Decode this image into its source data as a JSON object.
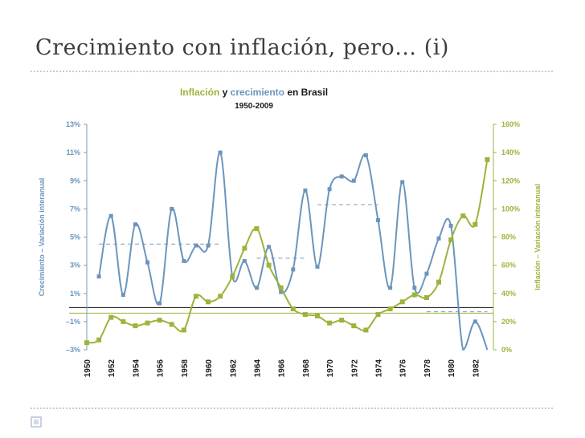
{
  "slide": {
    "title": "Crecimiento con inflación, pero… (i)"
  },
  "colors": {
    "growth": "#6b95bd",
    "inflation": "#9bb43c",
    "title_dark": "#1a1a1a",
    "title_text": "#3d3d3d"
  },
  "chart_data": {
    "type": "line",
    "title_parts": {
      "inflation": "Inflación",
      "conj": " y ",
      "growth": "crecimiento",
      "tail": " en Brasil"
    },
    "subtitle": "1950-2009",
    "ylabel": "Crecimiento – Variación interanual",
    "y2label": "Inflación – Variación interanual",
    "ylim": [
      -3,
      13
    ],
    "y2lim": [
      0,
      160
    ],
    "yticks": [
      13,
      11,
      9,
      7,
      5,
      3,
      1,
      -1,
      -3
    ],
    "ytick_labels": [
      "13%",
      "11%",
      "9%",
      "7%",
      "5%",
      "3%",
      "1%",
      "–1%",
      "–3%"
    ],
    "y2ticks": [
      160,
      140,
      120,
      100,
      80,
      60,
      40,
      20,
      0
    ],
    "y2tick_labels": [
      "160%",
      "140%",
      "120%",
      "100%",
      "80%",
      "60%",
      "40%",
      "20%",
      "0%"
    ],
    "x_ticks": [
      "1950",
      "1952",
      "1954",
      "1956",
      "1958",
      "1960",
      "1962",
      "1964",
      "1966",
      "1968",
      "1970",
      "1972",
      "1974",
      "1976",
      "1978",
      "1980",
      "1982"
    ],
    "series": [
      {
        "name": "crecimiento",
        "axis": "left",
        "x": [
          1951,
          1952,
          1953,
          1954,
          1955,
          1956,
          1957,
          1958,
          1959,
          1960,
          1961,
          1962,
          1963,
          1964,
          1965,
          1966,
          1967,
          1968,
          1969,
          1970,
          1971,
          1972,
          1973,
          1974,
          1975,
          1976,
          1977,
          1978,
          1979,
          1980,
          1981,
          1982,
          1983
        ],
        "values": [
          2.2,
          6.5,
          0.9,
          5.9,
          3.2,
          0.3,
          7.0,
          3.3,
          4.4,
          4.4,
          11.0,
          2.2,
          3.3,
          1.4,
          4.3,
          1.1,
          2.7,
          8.3,
          2.9,
          8.4,
          9.3,
          9.0,
          10.8,
          6.2,
          1.4,
          8.9,
          1.4,
          2.4,
          4.9,
          5.8,
          -3.4,
          -1.0,
          -3.4
        ]
      },
      {
        "name": "inflación",
        "axis": "right",
        "x": [
          1950,
          1951,
          1952,
          1953,
          1954,
          1955,
          1956,
          1957,
          1958,
          1959,
          1960,
          1961,
          1962,
          1963,
          1964,
          1965,
          1966,
          1967,
          1968,
          1969,
          1970,
          1971,
          1972,
          1973,
          1974,
          1975,
          1976,
          1977,
          1978,
          1979,
          1980,
          1981,
          1982,
          1983
        ],
        "values": [
          5,
          7,
          23,
          20,
          17,
          19,
          21,
          18,
          14,
          38,
          34,
          38,
          52,
          72,
          86,
          60,
          44,
          29,
          25,
          24,
          19,
          21,
          17,
          14,
          25,
          29,
          34,
          39,
          37,
          48,
          78,
          95,
          89,
          135
        ]
      }
    ],
    "reference_lines": [
      {
        "name": "growth-average-1951-1961",
        "axis": "left",
        "value": 4.5,
        "x_range": [
          1951,
          1961
        ]
      },
      {
        "name": "growth-average-1964-1968",
        "axis": "left",
        "value": 3.5,
        "x_range": [
          1964,
          1968
        ]
      },
      {
        "name": "growth-average-1969-1974",
        "axis": "left",
        "value": 7.3,
        "x_range": [
          1969,
          1974
        ]
      },
      {
        "name": "growth-average-1978-1983",
        "axis": "left",
        "value": -0.3,
        "x_range": [
          1978,
          1983
        ]
      },
      {
        "name": "zero-growth-line",
        "axis": "left",
        "value": 0
      },
      {
        "name": "inflation-reference-line",
        "axis": "right",
        "value": 26
      }
    ]
  }
}
